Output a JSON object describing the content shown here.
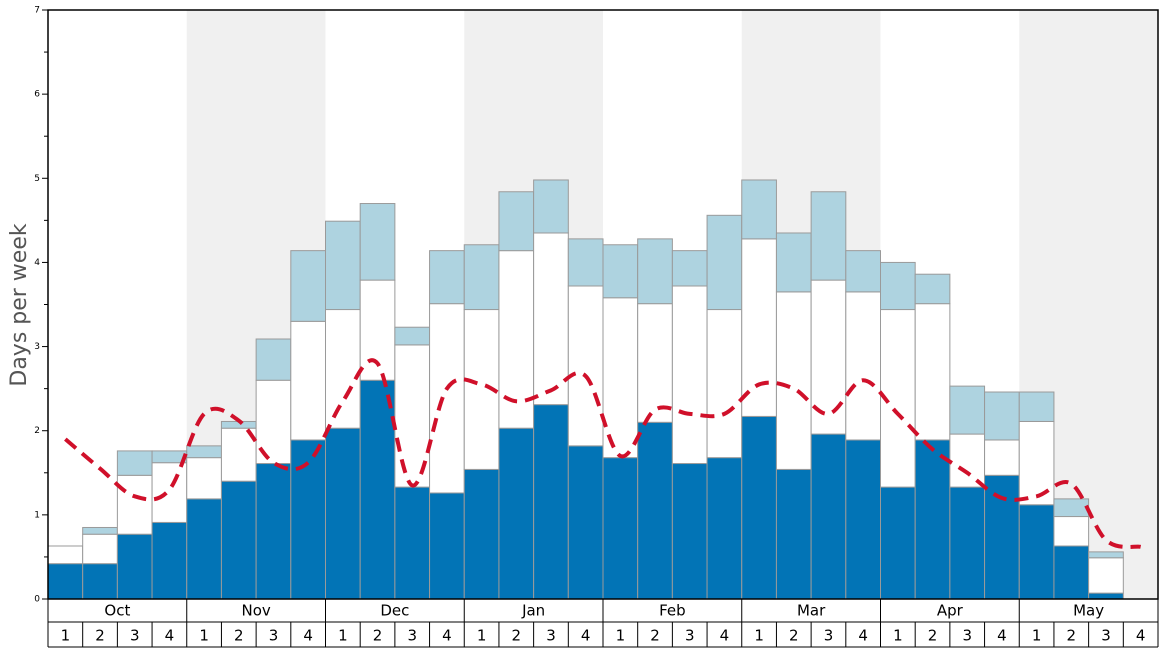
{
  "chart_data": {
    "type": "bar",
    "stacked": true,
    "y_label": "Days per week",
    "months": [
      "Oct",
      "Nov",
      "Dec",
      "Jan",
      "Feb",
      "Mar",
      "Apr",
      "May"
    ],
    "categories": [
      "1",
      "2",
      "3",
      "4",
      "1",
      "2",
      "3",
      "4",
      "1",
      "2",
      "3",
      "4",
      "1",
      "2",
      "3",
      "4",
      "1",
      "2",
      "3",
      "4",
      "1",
      "2",
      "3",
      "4",
      "1",
      "2",
      "3",
      "4",
      "1",
      "2",
      "3",
      "4"
    ],
    "ylim": [
      0,
      7
    ],
    "yticks": [
      0,
      1,
      2,
      3,
      4,
      5,
      6,
      7
    ],
    "shade_color": "#f0f0f0",
    "series": [
      {
        "color": "#0274b6",
        "values": [
          0.42,
          0.42,
          0.77,
          0.91,
          1.19,
          1.4,
          1.61,
          1.89,
          2.03,
          2.6,
          1.33,
          1.26,
          1.54,
          2.03,
          2.31,
          1.82,
          1.68,
          2.1,
          1.61,
          1.68,
          2.17,
          1.54,
          1.96,
          1.89,
          1.33,
          1.89,
          1.33,
          1.47,
          1.12,
          0.63,
          0.07,
          0
        ]
      },
      {
        "color": "#ffffff",
        "values": [
          0.21,
          0.35,
          0.7,
          0.71,
          0.49,
          0.63,
          0.99,
          1.41,
          1.41,
          1.19,
          1.69,
          2.25,
          1.9,
          2.11,
          2.04,
          1.9,
          1.9,
          1.41,
          2.11,
          1.76,
          2.11,
          2.11,
          1.83,
          1.76,
          2.11,
          1.62,
          0.63,
          0.42,
          0.99,
          0.35,
          0.42,
          0
        ]
      },
      {
        "color": "#aed3e0",
        "values": [
          0,
          0.08,
          0.29,
          0.14,
          0.14,
          0.08,
          0.49,
          0.84,
          1.05,
          0.91,
          0.21,
          0.63,
          0.77,
          0.7,
          0.63,
          0.56,
          0.63,
          0.77,
          0.42,
          1.12,
          0.7,
          0.7,
          1.05,
          0.49,
          0.56,
          0.35,
          0.57,
          0.57,
          0.35,
          0.21,
          0.07,
          0
        ]
      },
      {
        "type": "line",
        "color": "#d0102a",
        "dashed": true,
        "values": [
          1.9,
          1.55,
          1.22,
          1.3,
          2.2,
          2.12,
          1.62,
          1.62,
          2.35,
          2.8,
          1.35,
          2.5,
          2.55,
          2.35,
          2.48,
          2.65,
          1.7,
          2.25,
          2.2,
          2.2,
          2.55,
          2.5,
          2.2,
          2.6,
          2.2,
          1.78,
          1.5,
          1.2,
          1.22,
          1.37,
          0.7,
          0.62
        ]
      }
    ]
  }
}
